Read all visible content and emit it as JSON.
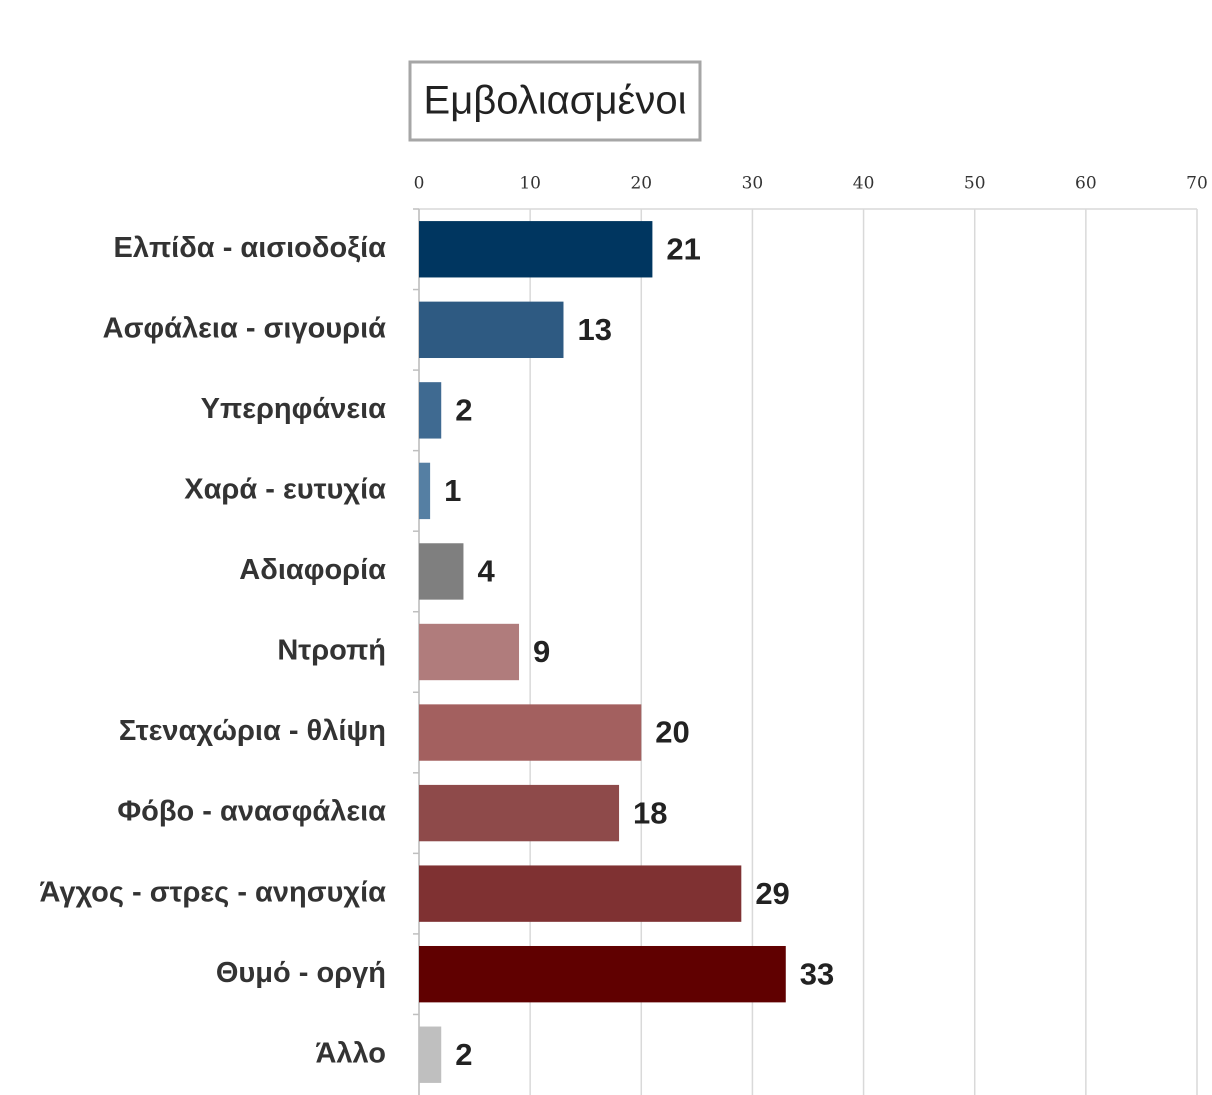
{
  "chart_data": {
    "type": "bar",
    "orientation": "horizontal",
    "title": "Εμβολιασμένοι",
    "categories": [
      "Ελπίδα - αισιοδοξία",
      "Ασφάλεια - σιγουριά",
      "Υπερηφάνεια",
      "Χαρά - ευτυχία",
      "Αδιαφορία",
      "Ντροπή",
      "Στεναχώρια - θλίψη",
      "Φόβο - ανασφάλεια",
      "Άγχος - στρες - ανησυχία",
      "Θυμό - οργή",
      "Άλλο"
    ],
    "values": [
      21,
      13,
      2,
      1,
      4,
      9,
      20,
      18,
      29,
      33,
      2
    ],
    "colors": [
      "#003660",
      "#2e5a82",
      "#3f6a91",
      "#557fa3",
      "#7f7f7f",
      "#b07c7c",
      "#a3605f",
      "#8e4a4a",
      "#7f3132",
      "#600000",
      "#bfbfbf"
    ],
    "xlim": [
      0,
      70
    ],
    "xticks": [
      0,
      10,
      20,
      30,
      40,
      50,
      60,
      70
    ],
    "grid": true
  }
}
